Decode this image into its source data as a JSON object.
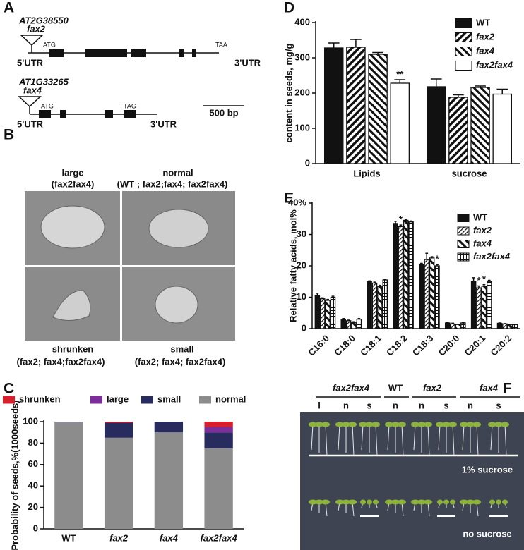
{
  "panel_labels": [
    "A",
    "B",
    "C",
    "D",
    "E",
    "F"
  ],
  "gene_diagram": {
    "genes": [
      {
        "locus": "AT2G38550",
        "insertion": "fax2",
        "start_codon": "ATG",
        "stop_codon": "TAA",
        "utr5": "5'UTR",
        "utr3": "3'UTR"
      },
      {
        "locus": "AT1G33265",
        "insertion": "fax4",
        "start_codon": "ATG",
        "stop_codon": "TAG",
        "utr5": "5'UTR",
        "utr3": "3'UTR"
      }
    ],
    "scale_bar": "500 bp"
  },
  "seed_images": [
    {
      "label": "large",
      "genotypes": "(fax2fax4)"
    },
    {
      "label": "normal",
      "genotypes": "(WT ; fax2;fax4; fax2fax4)"
    },
    {
      "label": "shrunken",
      "genotypes": "(fax2; fax4;fax2fax4)"
    },
    {
      "label": "small",
      "genotypes": "(fax2; fax4; fax2fax4)"
    }
  ],
  "seedling_photo": {
    "groups": [
      "fax2fax4",
      "WT",
      "fax2",
      "fax4"
    ],
    "columns": [
      "l",
      "n",
      "s",
      "n",
      "n",
      "s",
      "n",
      "s"
    ],
    "conditions": [
      "1% sucrose",
      "no sucrose"
    ]
  },
  "chart_data": [
    {
      "type": "bar",
      "stacked": true,
      "ylabel": "Probability of seeds,%(1000seeds)",
      "categories": [
        "WT",
        "fax2",
        "fax4",
        "fax2fax4"
      ],
      "category_style": [
        "normal",
        "italic",
        "italic",
        "italic"
      ],
      "series": [
        {
          "name": "shrunken",
          "color": "#d7202b",
          "values": [
            0,
            1,
            0,
            5
          ]
        },
        {
          "name": "large",
          "color": "#7d2e9b",
          "values": [
            0,
            0,
            0,
            5
          ]
        },
        {
          "name": "small",
          "color": "#272b5e",
          "values": [
            0.5,
            14,
            10,
            15
          ]
        },
        {
          "name": "normal",
          "color": "#8c8c8c",
          "values": [
            99.5,
            85,
            90,
            75
          ]
        }
      ],
      "ylim": [
        0,
        100
      ],
      "yticks": [
        0,
        20,
        40,
        60,
        80,
        100
      ],
      "legend": "top"
    },
    {
      "type": "bar",
      "ylabel": "content in seeds, mg/g",
      "categories": [
        "Lipids",
        "sucrose"
      ],
      "series": [
        {
          "name": "WT",
          "color": "#111111",
          "pattern": "solid",
          "italic": false,
          "values": [
            328,
            218
          ],
          "errors": [
            14,
            22
          ]
        },
        {
          "name": "fax2",
          "color": "#111111",
          "pattern": "hatch-right",
          "italic": true,
          "values": [
            330,
            188
          ],
          "errors": [
            22,
            7
          ]
        },
        {
          "name": "fax4",
          "color": "#111111",
          "pattern": "hatch-left",
          "italic": true,
          "values": [
            310,
            216
          ],
          "errors": [
            5,
            4
          ]
        },
        {
          "name": "fax2fax4",
          "color": "#ffffff",
          "pattern": "solid",
          "italic": true,
          "values": [
            228,
            197
          ],
          "errors": [
            10,
            14
          ]
        }
      ],
      "annotations": [
        {
          "text": "**",
          "category": "Lipids",
          "series": "fax2fax4"
        }
      ],
      "ylim": [
        0,
        400
      ],
      "yticks": [
        0,
        100,
        200,
        300,
        400
      ],
      "legend": "upper right"
    },
    {
      "type": "bar",
      "ylabel": "Relative fatty acids, mol%",
      "categories": [
        "C16:0",
        "C18:0",
        "C18:1",
        "C18:2",
        "C18:3",
        "C20:0",
        "C20:1",
        "C20:2"
      ],
      "series": [
        {
          "name": "WT",
          "color": "#111111",
          "pattern": "solid",
          "italic": false,
          "values": [
            10.5,
            3,
            15,
            33.5,
            20.5,
            1.8,
            15,
            1.7
          ],
          "errors": [
            0.8,
            0.2,
            0.2,
            0.7,
            0.3,
            0.2,
            1.2,
            0.1
          ]
        },
        {
          "name": "fax2",
          "color": "#111111",
          "pattern": "hatch-fine",
          "italic": true,
          "values": [
            9.5,
            2.5,
            14.5,
            32.5,
            22,
            1.5,
            13,
            1.5
          ],
          "errors": [
            0.3,
            0.2,
            0.3,
            0.5,
            2,
            0.2,
            0.6,
            0.1
          ]
        },
        {
          "name": "fax4",
          "color": "#111111",
          "pattern": "hatch-left",
          "italic": true,
          "values": [
            9,
            2,
            13.5,
            34.5,
            22.5,
            1.3,
            13.5,
            1.3
          ],
          "errors": [
            0.3,
            0.2,
            0.3,
            0.3,
            0.4,
            0.1,
            0.5,
            0.1
          ]
        },
        {
          "name": "fax2fax4",
          "color": "#111111",
          "pattern": "grid",
          "italic": true,
          "values": [
            10,
            3,
            15.5,
            34,
            20,
            1.8,
            15,
            1.3
          ],
          "errors": [
            0.3,
            0.2,
            0.2,
            0.3,
            0.4,
            0.1,
            0.4,
            0.1
          ]
        }
      ],
      "annotations": [
        {
          "text": "*",
          "category": "C18:2",
          "series": "fax2"
        },
        {
          "text": "*",
          "category": "C18:3",
          "series": "fax2fax4"
        },
        {
          "text": "*",
          "category": "C20:1",
          "series": "fax2"
        },
        {
          "text": "*",
          "category": "C20:1",
          "series": "fax4"
        }
      ],
      "ylim": [
        0,
        40
      ],
      "yticks": [
        0,
        10,
        20,
        30,
        {
          "value": 40,
          "label": "40%"
        }
      ],
      "legend": "upper right"
    }
  ]
}
